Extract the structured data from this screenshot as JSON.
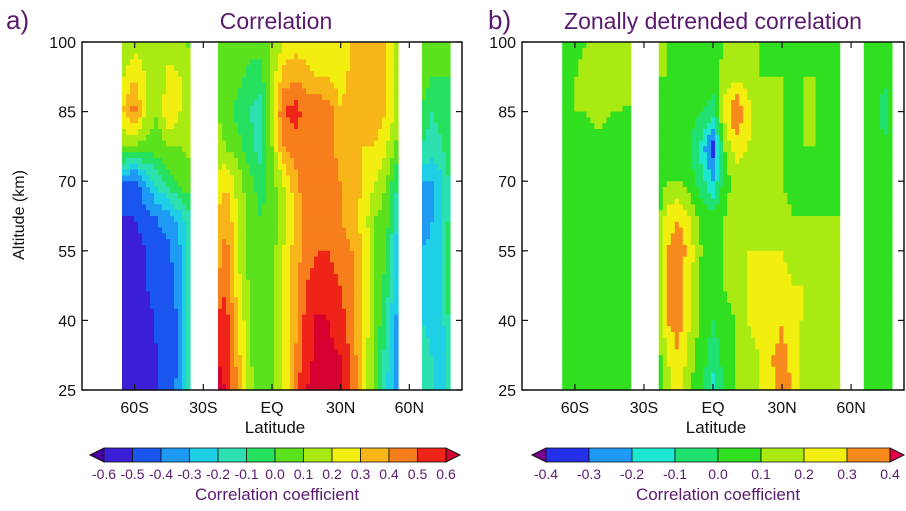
{
  "figure": {
    "ylabel": "Altitude (km)",
    "xlabel": "Latitude",
    "colorbar_title": "Correlation coefficient"
  },
  "chart_data": [
    {
      "type": "heatmap",
      "panel_label": "a)",
      "title": "Correlation",
      "xlabel": "Latitude",
      "ylabel": "Altitude (km)",
      "x_ticks": [
        "60S",
        "30S",
        "EQ",
        "30N",
        "60N"
      ],
      "x_tick_values": [
        -60,
        -30,
        0,
        30,
        60
      ],
      "y_ticks": [
        "100",
        "85",
        "70",
        "55",
        "40",
        "25"
      ],
      "y_tick_values": [
        100,
        85,
        70,
        55,
        40,
        25
      ],
      "xlim": [
        -83,
        83
      ],
      "ylim": [
        25,
        100
      ],
      "missing_lat_bands": [
        [
          -83,
          -66
        ],
        [
          -36,
          -24
        ],
        [
          55,
          65
        ],
        [
          77,
          83
        ]
      ],
      "colorbar_label": "Correlation coefficient",
      "colorbar_ticks": [
        "-0.6",
        "-0.5",
        "-0.4",
        "-0.3",
        "-0.2",
        "-0.1",
        "0.0",
        "0.1",
        "0.2",
        "0.3",
        "0.4",
        "0.5",
        "0.6"
      ],
      "levels": [
        -0.6,
        -0.5,
        -0.4,
        -0.3,
        -0.2,
        -0.1,
        0.0,
        0.1,
        0.2,
        0.3,
        0.4,
        0.5,
        0.6
      ],
      "colors": [
        "#4a00a0",
        "#3b1fd6",
        "#1a55f0",
        "#1e9af5",
        "#1ecfe6",
        "#2de0b0",
        "#26e060",
        "#5ce21c",
        "#a9ea12",
        "#f2ef10",
        "#f8b51a",
        "#f77e1c",
        "#ef2418",
        "#d40030"
      ],
      "latitudes": [
        -65,
        -60,
        -55,
        -50,
        -45,
        -40,
        -24,
        -20,
        -15,
        -10,
        -5,
        0,
        5,
        10,
        15,
        20,
        25,
        30,
        35,
        40,
        45,
        50,
        55,
        65,
        70,
        75,
        77
      ],
      "altitudes": [
        25,
        32,
        40,
        47,
        55,
        62,
        70,
        77,
        85,
        92,
        100
      ],
      "values": [
        [
          -0.55,
          -0.58,
          -0.55,
          -0.5,
          -0.42,
          -0.38,
          0.62,
          0.6,
          0.4,
          0.15,
          0.0,
          0.05,
          0.2,
          0.45,
          0.6,
          0.62,
          0.62,
          0.6,
          0.5,
          0.25,
          0.05,
          -0.2,
          -0.35,
          -0.15,
          -0.2,
          -0.25,
          -0.1
        ],
        [
          -0.55,
          -0.58,
          -0.55,
          -0.5,
          -0.45,
          -0.38,
          0.6,
          0.58,
          0.35,
          0.12,
          0.02,
          0.05,
          0.2,
          0.4,
          0.58,
          0.62,
          0.62,
          0.6,
          0.48,
          0.25,
          0.05,
          -0.15,
          -0.35,
          -0.15,
          -0.2,
          -0.25,
          -0.1
        ],
        [
          -0.55,
          -0.58,
          -0.55,
          -0.48,
          -0.45,
          -0.38,
          0.5,
          0.55,
          0.3,
          0.12,
          0.02,
          0.05,
          0.2,
          0.35,
          0.55,
          0.62,
          0.6,
          0.55,
          0.42,
          0.3,
          0.1,
          -0.12,
          -0.35,
          -0.2,
          -0.22,
          -0.2,
          -0.1
        ],
        [
          -0.55,
          -0.58,
          -0.5,
          -0.45,
          -0.45,
          -0.35,
          0.45,
          0.5,
          0.25,
          0.1,
          0.02,
          0.05,
          0.2,
          0.35,
          0.5,
          0.55,
          0.55,
          0.5,
          0.4,
          0.3,
          0.1,
          -0.05,
          -0.3,
          -0.25,
          -0.25,
          -0.2,
          -0.05
        ],
        [
          -0.52,
          -0.55,
          -0.5,
          -0.45,
          -0.42,
          -0.3,
          0.3,
          0.45,
          0.2,
          0.05,
          0.0,
          0.05,
          0.2,
          0.35,
          0.45,
          0.5,
          0.5,
          0.45,
          0.4,
          0.3,
          0.1,
          0.0,
          -0.3,
          -0.3,
          -0.28,
          -0.2,
          -0.05
        ],
        [
          -0.5,
          -0.5,
          -0.45,
          -0.4,
          -0.35,
          -0.25,
          0.3,
          0.4,
          0.2,
          0.05,
          0.0,
          0.05,
          0.15,
          0.3,
          0.45,
          0.5,
          0.45,
          0.4,
          0.35,
          0.25,
          0.1,
          0.05,
          -0.2,
          -0.35,
          -0.3,
          -0.2,
          -0.1
        ],
        [
          -0.4,
          -0.45,
          -0.3,
          -0.15,
          -0.05,
          0.05,
          0.2,
          0.3,
          0.15,
          0.05,
          -0.05,
          0.05,
          0.2,
          0.35,
          0.5,
          0.5,
          0.45,
          0.4,
          0.35,
          0.3,
          0.2,
          0.1,
          -0.1,
          -0.3,
          -0.3,
          -0.2,
          -0.1
        ],
        [
          0.1,
          0.05,
          0.05,
          0.05,
          0.1,
          0.1,
          0.15,
          0.1,
          0.05,
          -0.05,
          -0.15,
          0.1,
          0.4,
          0.45,
          0.45,
          0.5,
          0.45,
          0.35,
          0.3,
          0.3,
          0.3,
          0.2,
          0.05,
          -0.1,
          -0.15,
          -0.1,
          -0.05
        ],
        [
          0.3,
          0.45,
          0.2,
          0.1,
          0.3,
          0.2,
          0.1,
          0.05,
          -0.05,
          -0.1,
          -0.15,
          0.2,
          0.5,
          0.55,
          0.45,
          0.5,
          0.45,
          0.3,
          0.4,
          0.35,
          0.35,
          0.3,
          0.15,
          0.0,
          -0.1,
          -0.05,
          -0.05
        ],
        [
          0.2,
          0.3,
          0.2,
          0.1,
          0.25,
          0.2,
          0.1,
          0.05,
          0.05,
          -0.05,
          -0.05,
          0.15,
          0.35,
          0.4,
          0.35,
          0.3,
          0.3,
          0.25,
          0.35,
          0.4,
          0.35,
          0.3,
          0.15,
          0.05,
          0.0,
          0.0,
          0.0
        ],
        [
          0.1,
          0.15,
          0.15,
          0.1,
          0.15,
          0.1,
          0.05,
          0.1,
          0.1,
          0.05,
          0.05,
          0.1,
          0.2,
          0.25,
          0.25,
          0.2,
          0.2,
          0.2,
          0.3,
          0.35,
          0.4,
          0.3,
          0.15,
          0.05,
          0.05,
          0.05,
          0.05
        ]
      ]
    },
    {
      "type": "heatmap",
      "panel_label": "b)",
      "title": "Zonally detrended correlation",
      "xlabel": "Latitude",
      "ylabel": "Altitude (km)",
      "x_ticks": [
        "60S",
        "30S",
        "EQ",
        "30N",
        "60N"
      ],
      "x_tick_values": [
        -60,
        -30,
        0,
        30,
        60
      ],
      "y_ticks": [
        "100",
        "85",
        "70",
        "55",
        "40",
        "25"
      ],
      "y_tick_values": [
        100,
        85,
        70,
        55,
        40,
        25
      ],
      "xlim": [
        -83,
        83
      ],
      "ylim": [
        25,
        100
      ],
      "missing_lat_bands": [
        [
          -83,
          -66
        ],
        [
          -36,
          -24
        ],
        [
          55,
          65
        ],
        [
          77,
          83
        ]
      ],
      "colorbar_label": "Correlation coefficient",
      "colorbar_ticks": [
        "-0.4",
        "-0.3",
        "-0.2",
        "-0.1",
        "0.0",
        "0.1",
        "0.2",
        "0.3",
        "0.4"
      ],
      "levels": [
        -0.4,
        -0.3,
        -0.2,
        -0.1,
        0.0,
        0.1,
        0.2,
        0.3,
        0.4
      ],
      "colors": [
        "#7a0090",
        "#2430e8",
        "#1e9af5",
        "#1ee6d2",
        "#20e070",
        "#30e020",
        "#a9ea12",
        "#f2ef10",
        "#f78a1c",
        "#e6004e"
      ],
      "latitudes": [
        -65,
        -60,
        -55,
        -50,
        -45,
        -40,
        -24,
        -20,
        -15,
        -10,
        -5,
        0,
        5,
        10,
        15,
        20,
        25,
        30,
        35,
        40,
        45,
        50,
        55,
        65,
        70,
        75,
        77
      ],
      "altitudes": [
        25,
        32,
        40,
        47,
        55,
        62,
        70,
        77,
        85,
        92,
        100
      ],
      "values": [
        [
          0.05,
          0.05,
          0.05,
          0.05,
          0.05,
          0.05,
          0.05,
          0.15,
          0.25,
          0.1,
          0.0,
          -0.15,
          0.0,
          0.1,
          0.15,
          0.2,
          0.25,
          0.35,
          0.3,
          0.15,
          0.1,
          0.1,
          0.1,
          0.05,
          0.05,
          0.05,
          0.05
        ],
        [
          0.05,
          0.05,
          0.05,
          0.05,
          0.05,
          0.05,
          0.05,
          0.2,
          0.3,
          0.15,
          0.05,
          -0.05,
          0.05,
          0.1,
          0.15,
          0.2,
          0.3,
          0.35,
          0.25,
          0.15,
          0.1,
          0.1,
          0.1,
          0.05,
          0.05,
          0.05,
          0.05
        ],
        [
          0.05,
          0.05,
          0.05,
          0.05,
          0.05,
          0.05,
          0.05,
          0.3,
          0.35,
          0.2,
          0.05,
          0.0,
          0.05,
          0.1,
          0.2,
          0.25,
          0.2,
          0.3,
          0.2,
          0.2,
          0.15,
          0.1,
          0.1,
          0.05,
          0.05,
          0.05,
          0.05
        ],
        [
          0.05,
          0.05,
          0.05,
          0.05,
          0.05,
          0.05,
          0.05,
          0.3,
          0.35,
          0.2,
          0.05,
          0.05,
          0.1,
          0.15,
          0.2,
          0.2,
          0.2,
          0.25,
          0.2,
          0.2,
          0.15,
          0.1,
          0.1,
          0.05,
          0.05,
          0.05,
          0.05
        ],
        [
          0.05,
          0.05,
          0.05,
          0.05,
          0.05,
          0.05,
          0.05,
          0.3,
          0.38,
          0.25,
          0.1,
          0.05,
          0.1,
          0.15,
          0.2,
          0.2,
          0.2,
          0.2,
          0.15,
          0.15,
          0.15,
          0.1,
          0.1,
          0.05,
          0.05,
          0.05,
          0.05
        ],
        [
          0.05,
          0.05,
          0.05,
          0.05,
          0.05,
          0.05,
          0.05,
          0.25,
          0.3,
          0.2,
          0.05,
          0.05,
          0.1,
          0.15,
          0.15,
          0.15,
          0.2,
          0.15,
          0.1,
          0.1,
          0.1,
          0.1,
          0.1,
          0.05,
          0.05,
          0.05,
          0.05
        ],
        [
          0.05,
          0.05,
          0.05,
          0.05,
          0.05,
          0.05,
          0.05,
          0.1,
          0.1,
          0.05,
          -0.05,
          -0.2,
          0.05,
          0.15,
          0.15,
          0.1,
          0.15,
          0.1,
          0.05,
          0.05,
          0.05,
          0.05,
          0.1,
          0.05,
          0.05,
          0.05,
          0.05
        ],
        [
          0.05,
          0.05,
          0.05,
          0.05,
          0.05,
          0.05,
          0.05,
          0.05,
          0.05,
          0.0,
          -0.15,
          -0.35,
          0.1,
          0.25,
          0.2,
          0.15,
          0.15,
          0.1,
          0.05,
          0.1,
          0.1,
          0.05,
          0.05,
          0.05,
          0.05,
          0.05,
          0.05
        ],
        [
          0.05,
          0.1,
          0.1,
          0.15,
          0.1,
          0.1,
          0.05,
          0.05,
          0.05,
          0.05,
          0.0,
          -0.05,
          0.25,
          0.4,
          0.25,
          0.15,
          0.1,
          0.1,
          0.1,
          0.1,
          0.1,
          0.05,
          0.05,
          0.05,
          0.05,
          -0.1,
          0.05
        ],
        [
          0.05,
          0.1,
          0.15,
          0.2,
          0.2,
          0.15,
          0.1,
          0.1,
          0.05,
          0.05,
          0.05,
          0.05,
          0.15,
          0.2,
          0.15,
          0.1,
          0.1,
          0.1,
          0.05,
          0.1,
          0.1,
          0.05,
          0.05,
          0.05,
          0.05,
          0.05,
          0.05
        ],
        [
          0.05,
          0.05,
          0.1,
          0.15,
          0.1,
          0.1,
          0.1,
          0.1,
          0.05,
          0.05,
          0.05,
          0.05,
          0.1,
          0.1,
          0.1,
          0.1,
          0.05,
          0.05,
          0.05,
          0.05,
          0.05,
          0.05,
          0.05,
          0.05,
          0.05,
          0.05,
          0.05
        ]
      ]
    }
  ]
}
